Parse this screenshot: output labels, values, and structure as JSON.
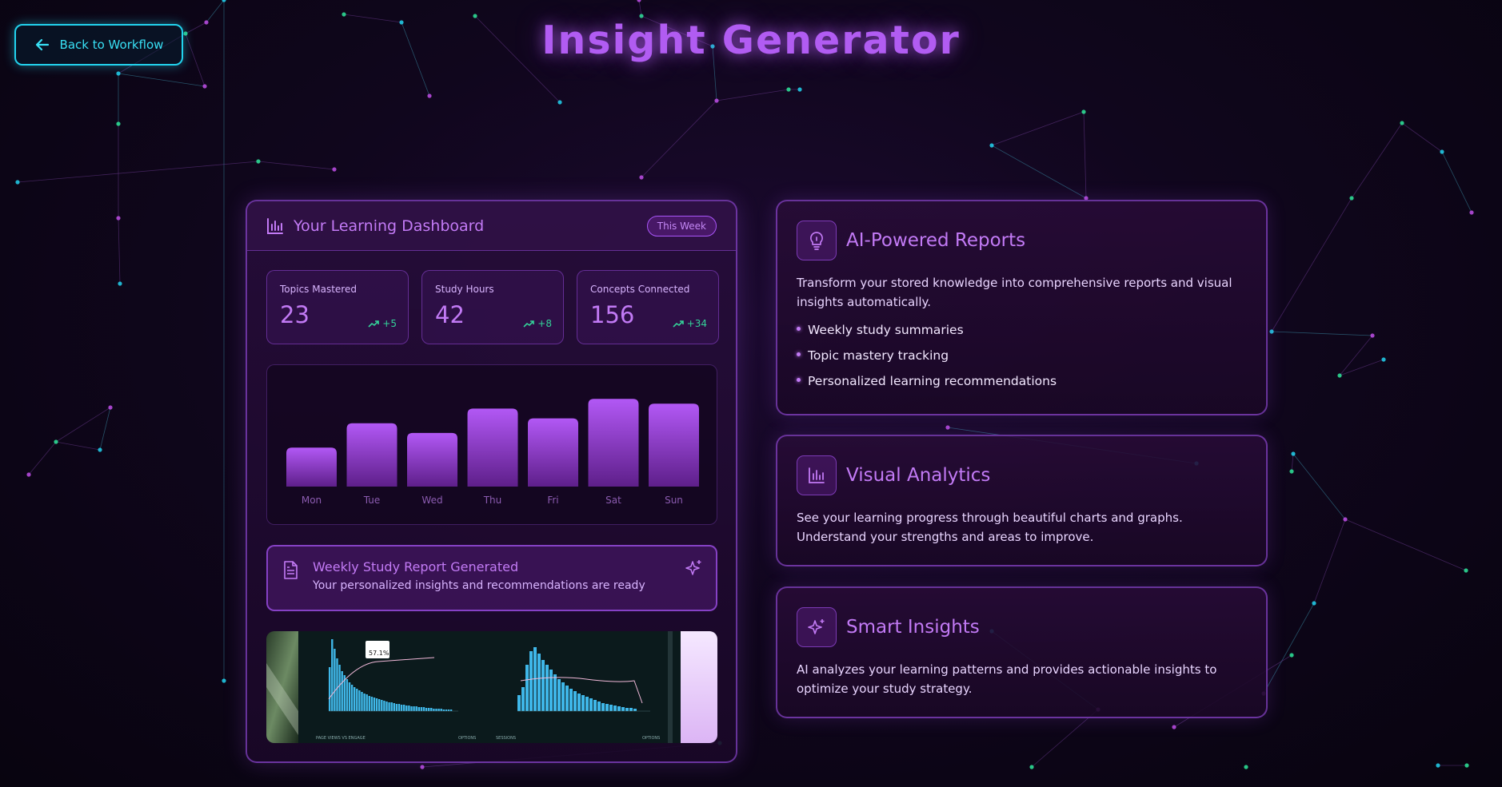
{
  "header": {
    "back_label": "Back to Workflow",
    "title": "Insight Generator"
  },
  "dashboard": {
    "title": "Your Learning Dashboard",
    "period": "This Week",
    "stats": [
      {
        "label": "Topics Mastered",
        "value": "23",
        "trend": "+5"
      },
      {
        "label": "Study Hours",
        "value": "42",
        "trend": "+8"
      },
      {
        "label": "Concepts Connected",
        "value": "156",
        "trend": "+34"
      }
    ],
    "report": {
      "title": "Weekly Study Report Generated",
      "subtitle": "Your personalized insights and recommendations are ready"
    },
    "preview": {
      "left_heading": "PAGE VIEWS VS ENGAGE",
      "left_options": "OPTIONS",
      "right_heading": "SESSIONS",
      "right_options": "OPTIONS",
      "tooltip": "57.1%"
    }
  },
  "chart_data": {
    "type": "bar",
    "categories": [
      "Mon",
      "Tue",
      "Wed",
      "Thu",
      "Fri",
      "Sat",
      "Sun"
    ],
    "values": [
      40,
      65,
      55,
      80,
      70,
      90,
      85
    ],
    "ylim": [
      0,
      100
    ],
    "title": "",
    "xlabel": "",
    "ylabel": ""
  },
  "features": [
    {
      "icon": "lightbulb-icon",
      "title": "AI-Powered Reports",
      "description": "Transform your stored knowledge into comprehensive reports and visual insights automatically.",
      "items": [
        "Weekly study summaries",
        "Topic mastery tracking",
        "Personalized learning recommendations"
      ]
    },
    {
      "icon": "bar-chart-icon",
      "title": "Visual Analytics",
      "description": "See your learning progress through beautiful charts and graphs. Understand your strengths and areas to improve."
    },
    {
      "icon": "sparkles-icon",
      "title": "Smart Insights",
      "description": "AI analyzes your learning patterns and provides actionable insights to optimize your study strategy."
    }
  ],
  "colors": {
    "accent": "#b15cf2",
    "cyan": "#22d3ee",
    "trend_green": "#34d399",
    "bar_top": "#b258f5",
    "bar_bottom": "#5e1f8a"
  }
}
